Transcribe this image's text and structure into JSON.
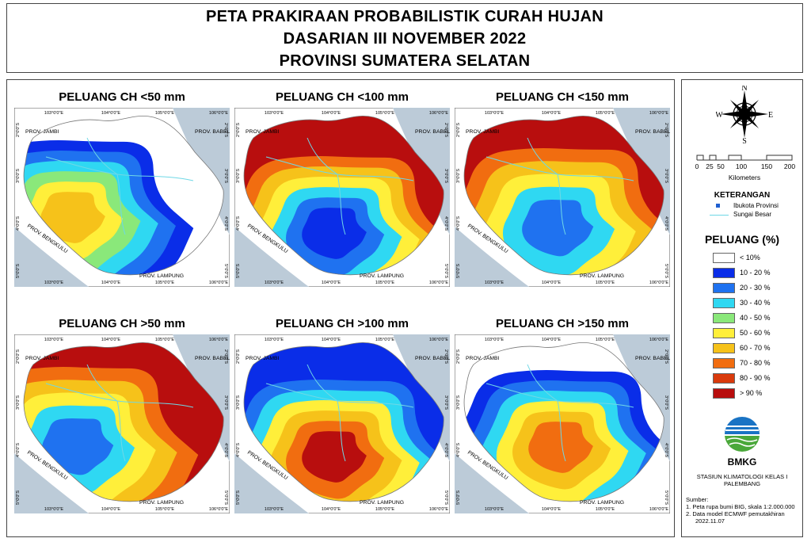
{
  "title": {
    "line1": "PETA PRAKIRAAN PROBABILISTIK CURAH HUJAN",
    "line2": "DASARIAN III NOVEMBER 2022",
    "line3": "PROVINSI SUMATERA SELATAN"
  },
  "panels": [
    {
      "title": "PELUANG CH <50 mm",
      "base": "#ffffff",
      "rings": [
        "#0a2de8",
        "#1f72f0",
        "#2fd8f2",
        "#8ae87a",
        "#ffef3a",
        "#f6c21a"
      ]
    },
    {
      "title": "PELUANG CH <100 mm",
      "base": "#b80e0e",
      "rings": [
        "#f16d10",
        "#f6c21a",
        "#ffef3a",
        "#2fd8f2",
        "#1f72f0",
        "#0a2de8"
      ]
    },
    {
      "title": "PELUANG CH <150 mm",
      "base": "#b80e0e",
      "rings": [
        "#f16d10",
        "#f6c21a",
        "#ffef3a",
        "#2fd8f2",
        "#1f72f0"
      ]
    },
    {
      "title": "PELUANG CH >50 mm",
      "base": "#b80e0e",
      "rings": [
        "#f16d10",
        "#f6c21a",
        "#ffef3a",
        "#2fd8f2",
        "#1f72f0"
      ]
    },
    {
      "title": "PELUANG CH >100 mm",
      "base": "#0a2de8",
      "rings": [
        "#1f72f0",
        "#2fd8f2",
        "#ffef3a",
        "#f6c21a",
        "#f16d10",
        "#b80e0e"
      ]
    },
    {
      "title": "PELUANG CH >150 mm",
      "base": "#ffffff",
      "rings": [
        "#0a2de8",
        "#1f72f0",
        "#2fd8f2",
        "#ffef3a",
        "#f6c21a",
        "#f16d10"
      ]
    }
  ],
  "map_labels": {
    "prov_jambi": "PROV. JAMBI",
    "prov_babel": "PROV. BABEL",
    "prov_bengkulu": "PROV. BENGKULU",
    "prov_lampung": "PROV. LAMPUNG",
    "lon_ticks": [
      "103°0'0\"E",
      "104°0'0\"E",
      "105°0'0\"E",
      "106°0'0\"E"
    ],
    "lat_ticks": [
      "2°0'0\"S",
      "3°0'0\"S",
      "4°0'0\"S",
      "5°0'0\"S"
    ]
  },
  "compass": {
    "n": "N",
    "s": "S",
    "e": "E",
    "w": "W"
  },
  "scale_bar": {
    "ticks": [
      "0",
      "25",
      "50",
      "100",
      "150",
      "200"
    ],
    "unit": "Kilometers"
  },
  "keterangan": {
    "title": "KETERANGAN",
    "ibukota": "Ibukota Provinsi",
    "sungai": "Sungai Besar",
    "ibukota_color": "#1f5fd0",
    "sungai_color": "#6fd8e6"
  },
  "peluang": {
    "title": "PELUANG (%)",
    "classes": [
      {
        "label": "< 10%",
        "color": "#ffffff"
      },
      {
        "label": "10 - 20 %",
        "color": "#0a2de8"
      },
      {
        "label": "20 - 30 %",
        "color": "#1f72f0"
      },
      {
        "label": "30 - 40 %",
        "color": "#2fd8f2"
      },
      {
        "label": "40 - 50 %",
        "color": "#8ae87a"
      },
      {
        "label": "50 - 60 %",
        "color": "#ffef3a"
      },
      {
        "label": "60 - 70 %",
        "color": "#f6c21a"
      },
      {
        "label": "70 - 80 %",
        "color": "#f16d10"
      },
      {
        "label": "80 - 90 %",
        "color": "#d93a0c"
      },
      {
        "label": "> 90 %",
        "color": "#b80e0e"
      }
    ]
  },
  "agency": {
    "name": "BMKG",
    "station_line1": "STASIUN KLIMATOLOGI KELAS I",
    "station_line2": "PALEMBANG"
  },
  "sources": {
    "title": "Sumber:",
    "line1": "1. Peta rupa bumi BIG, skala 1:2.000.000",
    "line2": "2. Data model ECMWF pemutakhiran",
    "line3": "2022.11.07"
  }
}
